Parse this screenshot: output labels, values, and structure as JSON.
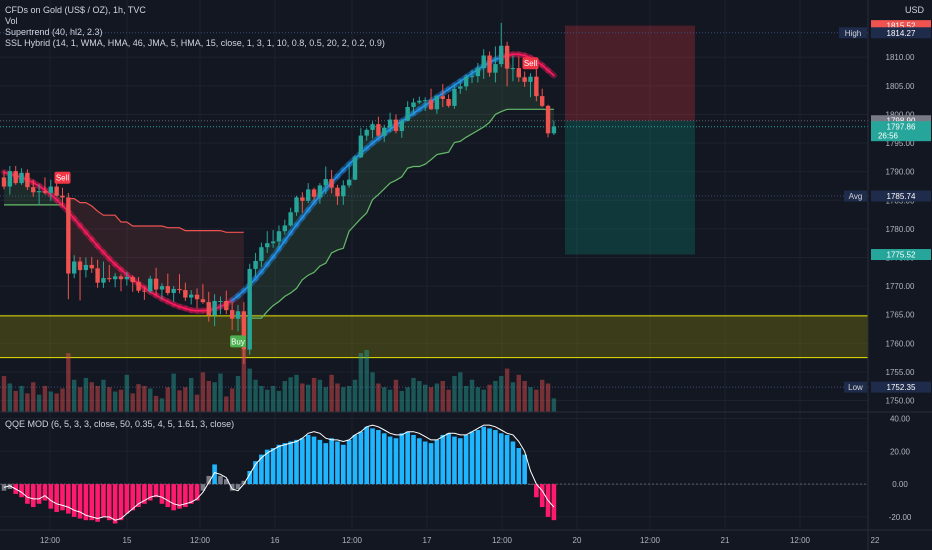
{
  "header": {
    "symbol": "CFDs on Gold (US$ / OZ), 1h, TVC",
    "vol": "Vol",
    "supertrend": "Supertrend (40, hl2, 2.3)",
    "ssl": "SSL Hybrid (14, 1, WMA, HMA, 46, JMA, 5, HMA, 15, close, 1, 3, 1, 10, 0.8, 0.5, 20, 2, 0.2, 0.9)",
    "currency": "USD"
  },
  "qqe_title": "QQE MOD (6, 5, 3, 3, close, 50, 0.35, 4, 5, 1.61, 3, close)",
  "colors": {
    "background": "#131722",
    "up": "#26a69a",
    "down": "#ef5350",
    "ssl_up": "#2196f3",
    "ssl_down": "#ff1a5e",
    "supertrend_up": "#66bb6a",
    "supertrend_down": "#ef5350",
    "zone_fill": "#6b6b12",
    "zone_line": "#e6e600",
    "qqe_up": "#1fb6ff",
    "qqe_down": "#ff1a6e",
    "qqe_neutral": "#787b86"
  },
  "chart_data": {
    "type": "candlestick",
    "price_axis": {
      "ticks": [
        1750,
        1755,
        1760,
        1765,
        1770,
        1775,
        1780,
        1785,
        1790,
        1795,
        1800,
        1805,
        1810
      ],
      "tick_labels": [
        "1750.00",
        "1755.00",
        "1760.00",
        "1765.00",
        "1770.00",
        "1775.00",
        "1780.00",
        "1785.00",
        "1790.00",
        "1795.00",
        "1800.00",
        "1805.00",
        "1810.00"
      ],
      "range": [
        1748,
        1820
      ]
    },
    "time_axis": {
      "labels": [
        "12:00",
        "15",
        "12:00",
        "16",
        "12:00",
        "17",
        "12:00",
        "20",
        "12:00",
        "21",
        "12:00",
        "22"
      ]
    },
    "price_labels": [
      {
        "text": "1815.52",
        "value": 1815.52,
        "color": "#ef5350",
        "tag": ""
      },
      {
        "text": "1814.27",
        "value": 1814.27,
        "color": "#1e2b4a",
        "tag": "High"
      },
      {
        "text": "1798.90",
        "value": 1798.9,
        "color": "#787b86",
        "tag": ""
      },
      {
        "text": "1797.86",
        "value": 1797.86,
        "color": "#26a69a",
        "tag": "",
        "countdown": "26:56"
      },
      {
        "text": "1785.74",
        "value": 1785.74,
        "color": "#1e2b4a",
        "tag": "Avg"
      },
      {
        "text": "1775.52",
        "value": 1775.52,
        "color": "#26a69a",
        "tag": ""
      },
      {
        "text": "1752.35",
        "value": 1752.35,
        "color": "#1e2b4a",
        "tag": "Low"
      }
    ],
    "zone": {
      "low": 1757.5,
      "high": 1764.8
    },
    "position": {
      "entry": 1798.9,
      "stop": 1815.52,
      "target": 1775.52
    },
    "signals": [
      {
        "text": "Sell",
        "bar": 10,
        "type": "sell"
      },
      {
        "text": "Buy",
        "bar": 40,
        "type": "buy"
      },
      {
        "text": "Sell",
        "bar": 90,
        "type": "sell"
      }
    ],
    "candles": [
      [
        1789.0,
        1790.2,
        1786.9,
        1787.4
      ],
      [
        1787.4,
        1791.0,
        1786.0,
        1790.1
      ],
      [
        1790.1,
        1791.0,
        1787.7,
        1788.0
      ],
      [
        1788.0,
        1790.6,
        1787.7,
        1789.8
      ],
      [
        1789.8,
        1790.4,
        1786.8,
        1787.3
      ],
      [
        1787.3,
        1788.6,
        1785.6,
        1786.4
      ],
      [
        1786.4,
        1787.8,
        1784.2,
        1786.6
      ],
      [
        1786.6,
        1789.0,
        1786.0,
        1786.3
      ],
      [
        1786.3,
        1788.6,
        1784.9,
        1787.4
      ],
      [
        1787.4,
        1788.2,
        1785.7,
        1785.8
      ],
      [
        1785.8,
        1787.2,
        1783.9,
        1785.5
      ],
      [
        1785.5,
        1786.3,
        1767.7,
        1772.2
      ],
      [
        1772.2,
        1775.4,
        1771.4,
        1774.3
      ],
      [
        1774.3,
        1775.1,
        1767.5,
        1772.8
      ],
      [
        1772.8,
        1775.0,
        1771.5,
        1773.7
      ],
      [
        1773.7,
        1775.1,
        1772.3,
        1773.1
      ],
      [
        1773.1,
        1774.6,
        1769.7,
        1770.6
      ],
      [
        1770.6,
        1774.3,
        1769.7,
        1771.4
      ],
      [
        1771.4,
        1773.7,
        1770.7,
        1771.2
      ],
      [
        1771.2,
        1772.3,
        1769.8,
        1771.7
      ],
      [
        1771.7,
        1772.1,
        1769.1,
        1771.2
      ],
      [
        1771.2,
        1772.5,
        1770.1,
        1771.6
      ],
      [
        1771.6,
        1771.9,
        1769.0,
        1770.7
      ],
      [
        1770.7,
        1771.6,
        1768.8,
        1769.2
      ],
      [
        1769.2,
        1769.9,
        1767.6,
        1769.1
      ],
      [
        1769.1,
        1771.8,
        1768.8,
        1771.3
      ],
      [
        1771.3,
        1773.2,
        1768.5,
        1769.4
      ],
      [
        1769.4,
        1770.5,
        1767.7,
        1770.0
      ],
      [
        1770.0,
        1772.2,
        1768.4,
        1768.8
      ],
      [
        1768.8,
        1770.0,
        1767.3,
        1769.5
      ],
      [
        1769.5,
        1772.1,
        1768.7,
        1769.3
      ],
      [
        1769.3,
        1770.6,
        1767.4,
        1768.0
      ],
      [
        1768.0,
        1769.3,
        1766.8,
        1768.5
      ],
      [
        1768.5,
        1769.6,
        1766.2,
        1767.7
      ],
      [
        1767.7,
        1770.4,
        1766.9,
        1767.2
      ],
      [
        1767.2,
        1769.0,
        1763.8,
        1764.9
      ],
      [
        1764.9,
        1768.6,
        1763.0,
        1767.4
      ],
      [
        1767.4,
        1768.2,
        1765.1,
        1767.4
      ],
      [
        1767.4,
        1769.2,
        1765.1,
        1765.8
      ],
      [
        1765.8,
        1767.2,
        1762.3,
        1764.3
      ],
      [
        1764.3,
        1766.7,
        1762.1,
        1765.6
      ],
      [
        1765.6,
        1767.2,
        1756.4,
        1758.9
      ],
      [
        1758.9,
        1773.9,
        1758.0,
        1773.0
      ],
      [
        1773.0,
        1775.8,
        1771.6,
        1774.4
      ],
      [
        1774.4,
        1777.6,
        1773.3,
        1776.8
      ],
      [
        1776.8,
        1779.6,
        1775.8,
        1777.5
      ],
      [
        1777.5,
        1779.8,
        1776.7,
        1777.8
      ],
      [
        1777.8,
        1780.6,
        1776.6,
        1779.6
      ],
      [
        1779.6,
        1781.6,
        1779.0,
        1780.6
      ],
      [
        1780.6,
        1783.7,
        1780.4,
        1782.9
      ],
      [
        1782.9,
        1785.8,
        1782.3,
        1785.5
      ],
      [
        1785.5,
        1786.4,
        1782.8,
        1784.9
      ],
      [
        1784.9,
        1788.0,
        1784.5,
        1786.9
      ],
      [
        1786.9,
        1787.2,
        1784.9,
        1785.6
      ],
      [
        1785.6,
        1788.0,
        1784.4,
        1787.6
      ],
      [
        1787.6,
        1790.9,
        1786.1,
        1788.7
      ],
      [
        1788.7,
        1790.3,
        1786.2,
        1787.2
      ],
      [
        1787.2,
        1787.7,
        1784.2,
        1785.7
      ],
      [
        1785.7,
        1788.5,
        1784.2,
        1787.6
      ],
      [
        1787.6,
        1791.4,
        1787.2,
        1788.6
      ],
      [
        1788.6,
        1792.9,
        1788.5,
        1792.5
      ],
      [
        1792.5,
        1797.6,
        1792.4,
        1796.3
      ],
      [
        1796.3,
        1797.6,
        1795.4,
        1797.3
      ],
      [
        1797.3,
        1798.8,
        1795.8,
        1798.3
      ],
      [
        1798.3,
        1799.6,
        1796.1,
        1796.3
      ],
      [
        1796.3,
        1798.2,
        1795.2,
        1797.7
      ],
      [
        1797.7,
        1800.3,
        1796.9,
        1799.1
      ],
      [
        1799.1,
        1800.0,
        1796.7,
        1797.1
      ],
      [
        1797.1,
        1799.1,
        1795.9,
        1798.9
      ],
      [
        1798.9,
        1802.3,
        1798.8,
        1801.3
      ],
      [
        1801.3,
        1802.8,
        1799.9,
        1802.1
      ],
      [
        1802.1,
        1803.1,
        1801.8,
        1802.4
      ],
      [
        1802.4,
        1803.0,
        1800.6,
        1802.5
      ],
      [
        1802.5,
        1804.5,
        1800.8,
        1800.9
      ],
      [
        1800.9,
        1803.3,
        1800.1,
        1803.2
      ],
      [
        1803.2,
        1805.3,
        1801.3,
        1802.7
      ],
      [
        1802.7,
        1803.5,
        1801.2,
        1801.5
      ],
      [
        1801.5,
        1805.2,
        1801.0,
        1804.5
      ],
      [
        1804.5,
        1806.1,
        1803.6,
        1804.9
      ],
      [
        1804.9,
        1807.0,
        1804.2,
        1806.6
      ],
      [
        1806.6,
        1807.8,
        1805.5,
        1806.7
      ],
      [
        1806.7,
        1809.0,
        1805.6,
        1808.1
      ],
      [
        1808.1,
        1811.4,
        1806.2,
        1810.3
      ],
      [
        1810.3,
        1811.0,
        1806.6,
        1807.3
      ],
      [
        1807.3,
        1811.9,
        1805.6,
        1808.8
      ],
      [
        1808.8,
        1816.0,
        1808.3,
        1812.0
      ],
      [
        1812.0,
        1812.7,
        1804.9,
        1808.0
      ],
      [
        1808.0,
        1810.3,
        1805.8,
        1808.1
      ],
      [
        1808.1,
        1810.1,
        1805.7,
        1806.5
      ],
      [
        1806.5,
        1807.5,
        1804.8,
        1805.7
      ],
      [
        1805.7,
        1807.2,
        1803.0,
        1806.6
      ],
      [
        1806.6,
        1808.5,
        1802.3,
        1803.2
      ],
      [
        1803.2,
        1804.5,
        1801.3,
        1801.5
      ],
      [
        1801.5,
        1801.7,
        1796.0,
        1796.7
      ],
      [
        1796.7,
        1798.9,
        1796.4,
        1797.9
      ]
    ],
    "ssl_hybrid": {
      "start_bar": 0,
      "values": [
        1789.9,
        1789.6,
        1789.3,
        1789.0,
        1788.6,
        1788.1,
        1787.5,
        1786.8,
        1786.0,
        1785.1,
        1784.1,
        1783.0,
        1781.8,
        1780.6,
        1779.4,
        1778.2,
        1777.0,
        1775.9,
        1774.8,
        1773.8,
        1772.9,
        1772.0,
        1771.2,
        1770.4,
        1769.7,
        1769.0,
        1768.4,
        1767.8,
        1767.3,
        1766.8,
        1766.4,
        1766.1,
        1765.8,
        1765.7,
        1765.7,
        1765.8,
        1766.0,
        1766.4,
        1766.9,
        1767.5,
        1768.3,
        1769.2,
        1770.2,
        1771.3,
        1772.5,
        1773.8,
        1775.1,
        1776.5,
        1777.9,
        1779.3,
        1780.7,
        1782.0,
        1783.3,
        1784.6,
        1785.8,
        1787.0,
        1788.1,
        1789.2,
        1790.3,
        1791.3,
        1792.3,
        1793.2,
        1794.1,
        1795.0,
        1795.8,
        1796.6,
        1797.4,
        1798.1,
        1798.8,
        1799.5,
        1800.2,
        1800.9,
        1801.6,
        1802.3,
        1803.0,
        1803.7,
        1804.4,
        1805.1,
        1805.8,
        1806.5,
        1807.2,
        1807.9,
        1808.5,
        1809.1,
        1809.6,
        1810.0,
        1810.3,
        1810.5,
        1810.5,
        1810.3,
        1809.9,
        1809.3,
        1808.6,
        1807.7,
        1806.8
      ],
      "trend": [
        "d",
        "d",
        "d",
        "d",
        "d",
        "d",
        "d",
        "d",
        "d",
        "d",
        "d",
        "d",
        "d",
        "d",
        "d",
        "d",
        "d",
        "d",
        "d",
        "d",
        "d",
        "d",
        "d",
        "d",
        "d",
        "d",
        "d",
        "d",
        "d",
        "d",
        "d",
        "d",
        "d",
        "d",
        "d",
        "d",
        "d",
        "d",
        "d",
        "d",
        "u",
        "u",
        "u",
        "u",
        "u",
        "u",
        "u",
        "u",
        "u",
        "u",
        "u",
        "u",
        "u",
        "u",
        "u",
        "u",
        "u",
        "u",
        "u",
        "u",
        "u",
        "u",
        "u",
        "u",
        "u",
        "u",
        "u",
        "u",
        "u",
        "u",
        "u",
        "u",
        "u",
        "u",
        "u",
        "u",
        "u",
        "u",
        "u",
        "u",
        "u",
        "u",
        "u",
        "u",
        "u",
        "u",
        "d",
        "d",
        "d",
        "d",
        "d",
        "d",
        "d",
        "d",
        "d"
      ]
    },
    "supertrend": {
      "segments": [
        {
          "trend": "up",
          "start_bar": 0,
          "values": [
            1784.2,
            1784.2,
            1784.2,
            1784.2,
            1784.2,
            1784.2,
            1784.2,
            1784.2,
            1784.2,
            1784.2,
            1784.2
          ]
        },
        {
          "trend": "down",
          "start_bar": 11,
          "values": [
            1785.3,
            1785.3,
            1784.6,
            1784.6,
            1784.0,
            1783.1,
            1782.4,
            1782.4,
            1782.4,
            1781.2,
            1781.2,
            1780.5,
            1780.5,
            1780.5,
            1780.5,
            1780.5,
            1780.5,
            1780.2,
            1780.2,
            1780.2,
            1779.7,
            1779.7,
            1779.7,
            1779.7,
            1779.7,
            1779.7,
            1779.7,
            1779.4,
            1779.4,
            1779.4,
            1779.4
          ]
        },
        {
          "trend": "up",
          "start_bar": 42,
          "values": [
            1764.4,
            1764.4,
            1764.4,
            1765.6,
            1766.6,
            1767.3,
            1768.2,
            1768.8,
            1769.6,
            1771.1,
            1771.9,
            1772.4,
            1773.5,
            1774.0,
            1775.8,
            1776.3,
            1776.6,
            1779.6,
            1780.7,
            1781.8,
            1782.8,
            1785.1,
            1786.0,
            1787.0,
            1788.0,
            1788.5,
            1789.1,
            1790.6,
            1790.9,
            1790.9,
            1791.3,
            1792.1,
            1793.0,
            1793.2,
            1793.4,
            1795.1,
            1795.3,
            1796.0,
            1796.6,
            1797.2,
            1797.8,
            1798.6,
            1800.0,
            1800.5,
            1800.9,
            1800.9,
            1800.9,
            1800.9,
            1800.9,
            1800.9,
            1800.9,
            1800.9,
            1800.9
          ]
        }
      ]
    },
    "volume": [
      58,
      46,
      34,
      42,
      30,
      48,
      28,
      42,
      33,
      30,
      38,
      95,
      52,
      40,
      55,
      48,
      42,
      52,
      40,
      33,
      36,
      60,
      30,
      45,
      42,
      38,
      26,
      22,
      40,
      62,
      35,
      40,
      55,
      28,
      64,
      50,
      48,
      62,
      25,
      38,
      58,
      100,
      70,
      52,
      42,
      36,
      42,
      34,
      50,
      56,
      60,
      46,
      44,
      55,
      52,
      40,
      60,
      46,
      40,
      42,
      52,
      95,
      100,
      64,
      46,
      40,
      36,
      52,
      34,
      40,
      55,
      50,
      44,
      40,
      46,
      50,
      36,
      58,
      64,
      42,
      52,
      40,
      36,
      44,
      50,
      58,
      70,
      48,
      60,
      50,
      40,
      36,
      52,
      46,
      22
    ],
    "qqe": {
      "axis_ticks": [
        40,
        20,
        0,
        -20
      ],
      "tick_labels": [
        "40.00",
        "20.00",
        "0.00",
        "-20.00"
      ],
      "range": [
        -28,
        44
      ],
      "histogram": [
        -4,
        -3,
        -6,
        -8,
        -12,
        -14,
        -12,
        -10,
        -15,
        -17,
        -16,
        -18,
        -20,
        -21,
        -22,
        -22,
        -23,
        -20,
        -22,
        -24,
        -22,
        -18,
        -16,
        -14,
        -12,
        -10,
        -8,
        -12,
        -14,
        -16,
        -15,
        -14,
        -12,
        -10,
        -4,
        5,
        12,
        5,
        3,
        -4,
        -3,
        2,
        8,
        14,
        18,
        21,
        22,
        24,
        25,
        26,
        27,
        28,
        30,
        29,
        27,
        25,
        28,
        26,
        24,
        27,
        30,
        32,
        35,
        34,
        33,
        31,
        29,
        28,
        31,
        32,
        30,
        28,
        26,
        25,
        27,
        30,
        31,
        29,
        28,
        30,
        32,
        33,
        35,
        34,
        33,
        31,
        30,
        26,
        22,
        18,
        0,
        -8,
        -14,
        -20,
        -22
      ],
      "signal_line": [
        -2,
        -1,
        -3,
        -5,
        -8,
        -9,
        -9,
        -7,
        -10,
        -12,
        -13,
        -14,
        -16,
        -17,
        -19,
        -20,
        -21,
        -20,
        -20,
        -22,
        -21,
        -18,
        -15,
        -12,
        -10,
        -8,
        -7,
        -8,
        -10,
        -12,
        -13,
        -12,
        -11,
        -9,
        -5,
        1,
        7,
        6,
        4,
        -3,
        -4,
        0,
        6,
        12,
        16,
        19,
        21,
        23,
        24,
        25,
        26,
        28,
        31,
        32,
        31,
        28,
        27,
        27,
        26,
        27,
        30,
        32,
        35,
        36,
        35,
        33,
        31,
        30,
        30,
        32,
        32,
        31,
        29,
        27,
        27,
        29,
        31,
        31,
        30,
        30,
        32,
        34,
        36,
        36,
        35,
        33,
        31,
        30,
        26,
        20,
        8,
        0,
        -4,
        -10,
        -14
      ]
    }
  }
}
